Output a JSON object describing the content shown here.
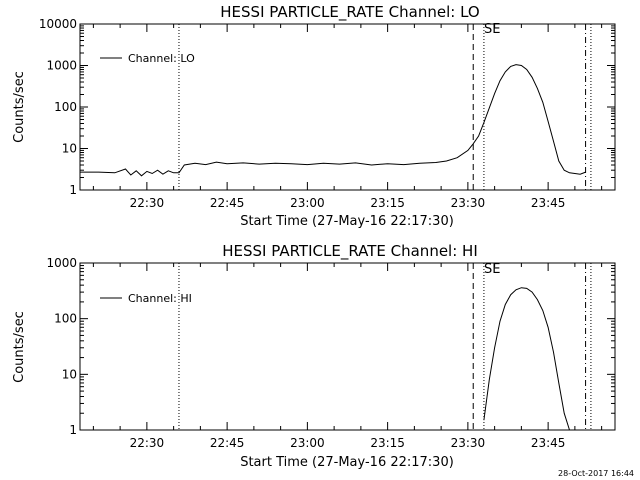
{
  "footer": {
    "timestamp": "28-Oct-2017 16:44"
  },
  "chart_data": [
    {
      "type": "line",
      "title": "HESSI PARTICLE_RATE Channel: LO",
      "xlabel": "Start Time (27-May-16 22:17:30)",
      "ylabel": "Counts/sec",
      "y_scale": "log",
      "xlim": [
        "22:17:30",
        "23:57:30"
      ],
      "ylim": [
        1,
        10000
      ],
      "x_ticks": [
        "22:30",
        "22:45",
        "23:00",
        "23:15",
        "23:30",
        "23:45"
      ],
      "y_ticks": [
        "1",
        "10",
        "100",
        "1000",
        "10000"
      ],
      "legend": {
        "position": "top-left",
        "entries": [
          "Channel: LO"
        ]
      },
      "grid": false,
      "annotations": [
        {
          "text": "SE",
          "x": "23:33"
        }
      ],
      "vlines": [
        {
          "x": "22:36",
          "style": "dotted"
        },
        {
          "x": "23:31",
          "style": "dashed"
        },
        {
          "x": "23:33",
          "style": "dotted"
        },
        {
          "x": "23:52",
          "style": "dash-dot"
        },
        {
          "x": "23:53",
          "style": "dotted"
        }
      ],
      "series": [
        {
          "name": "Channel: LO",
          "x": [
            "22:17:30",
            "22:21",
            "22:24",
            "22:26",
            "22:27",
            "22:28",
            "22:29",
            "22:30",
            "22:31",
            "22:32",
            "22:33",
            "22:34",
            "22:35",
            "22:36",
            "22:37",
            "22:39",
            "22:41",
            "22:43",
            "22:45",
            "22:48",
            "22:51",
            "22:54",
            "22:57",
            "23:00",
            "23:03",
            "23:06",
            "23:09",
            "23:12",
            "23:15",
            "23:18",
            "23:21",
            "23:24",
            "23:26",
            "23:28",
            "23:30",
            "23:31",
            "23:32",
            "23:33",
            "23:34",
            "23:35",
            "23:36",
            "23:37",
            "23:38",
            "23:39",
            "23:40",
            "23:41",
            "23:42",
            "23:43",
            "23:44",
            "23:45",
            "23:46",
            "23:47",
            "23:48",
            "23:49",
            "23:50",
            "23:51",
            "23:52"
          ],
          "values": [
            2.7,
            2.7,
            2.6,
            3.2,
            2.3,
            2.9,
            2.2,
            2.8,
            2.5,
            3.0,
            2.4,
            2.9,
            2.6,
            2.6,
            4.0,
            4.4,
            4.1,
            4.7,
            4.3,
            4.5,
            4.2,
            4.4,
            4.3,
            4.1,
            4.4,
            4.2,
            4.5,
            4.0,
            4.3,
            4.1,
            4.4,
            4.6,
            5.0,
            6.0,
            9.0,
            13,
            20,
            42,
            95,
            210,
            430,
            700,
            950,
            1050,
            1000,
            800,
            520,
            280,
            130,
            45,
            15,
            5,
            3,
            2.6,
            2.5,
            2.4,
            2.7
          ]
        }
      ]
    },
    {
      "type": "line",
      "title": "HESSI PARTICLE_RATE Channel: HI",
      "xlabel": "Start Time (27-May-16 22:17:30)",
      "ylabel": "Counts/sec",
      "y_scale": "log",
      "xlim": [
        "22:17:30",
        "23:57:30"
      ],
      "ylim": [
        1,
        1000
      ],
      "x_ticks": [
        "22:30",
        "22:45",
        "23:00",
        "23:15",
        "23:30",
        "23:45"
      ],
      "y_ticks": [
        "1",
        "10",
        "100",
        "1000"
      ],
      "legend": {
        "position": "top-left",
        "entries": [
          "Channel: HI"
        ]
      },
      "grid": false,
      "annotations": [
        {
          "text": "SE",
          "x": "23:33"
        }
      ],
      "vlines": [
        {
          "x": "22:36",
          "style": "dotted"
        },
        {
          "x": "23:31",
          "style": "dashed"
        },
        {
          "x": "23:33",
          "style": "dotted"
        },
        {
          "x": "23:52",
          "style": "dash-dot"
        },
        {
          "x": "23:53",
          "style": "dotted"
        }
      ],
      "series": [
        {
          "name": "Channel: HI",
          "x": [
            "23:33",
            "23:34",
            "23:35",
            "23:36",
            "23:37",
            "23:38",
            "23:39",
            "23:40",
            "23:41",
            "23:42",
            "23:43",
            "23:44",
            "23:45",
            "23:46",
            "23:47",
            "23:48",
            "23:49"
          ],
          "values": [
            1.5,
            8,
            30,
            90,
            180,
            270,
            330,
            360,
            350,
            300,
            220,
            140,
            70,
            25,
            7,
            2,
            1
          ]
        }
      ]
    }
  ]
}
